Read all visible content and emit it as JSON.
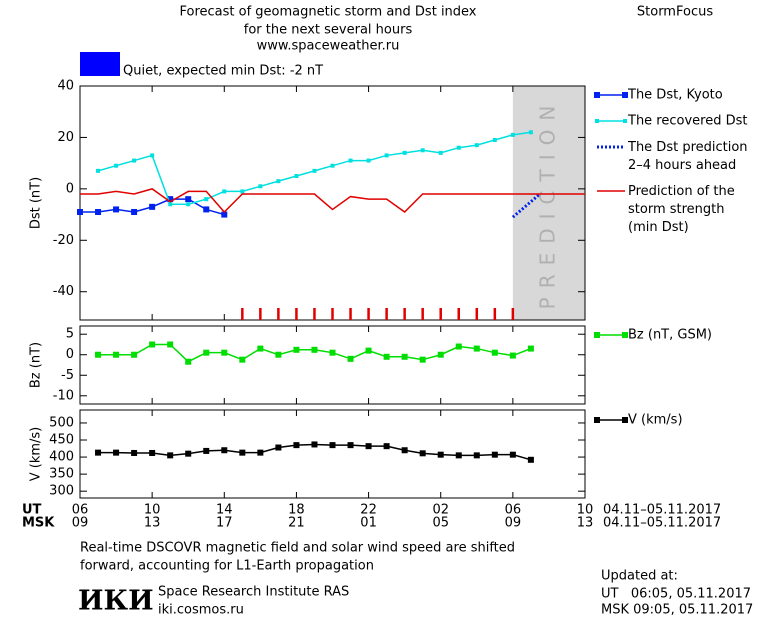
{
  "header": {
    "title_lines": [
      "Forecast of geomagnetic storm and Dst index",
      "for the next several hours",
      "www.spaceweather.ru"
    ],
    "brand": "StormFocus"
  },
  "chart_data": [
    {
      "type": "line",
      "y_label": "Dst (nT)",
      "xlim": [
        0,
        28
      ],
      "ylim": [
        -51,
        40
      ],
      "yticks": [
        -40,
        -20,
        0,
        20,
        40
      ],
      "status": {
        "label": "Quiet, expected min Dst: -2 nT",
        "color": "#0000ff"
      },
      "prediction": {
        "label": "PREDICTION",
        "from": 24,
        "to": 28,
        "color": "#d8d8d8"
      },
      "forecast_marks": {
        "color": "#e00000",
        "x": [
          9,
          10,
          11,
          12,
          13,
          14,
          15,
          16,
          17,
          18,
          19,
          20,
          21,
          22,
          23,
          24
        ]
      },
      "series": [
        {
          "name": "The Dst, Kyoto",
          "color": "#0022ee",
          "marker": "square",
          "x": [
            0,
            1,
            2,
            3,
            4,
            5,
            6,
            7,
            8
          ],
          "values": [
            -9,
            -9,
            -8,
            -9,
            -7,
            -4,
            -4,
            -8,
            -10
          ]
        },
        {
          "name": "The recovered Dst",
          "color": "#00e0e0",
          "marker": "small",
          "x": [
            1,
            2,
            3,
            4,
            5,
            6,
            7,
            8,
            9,
            10,
            11,
            12,
            13,
            14,
            15,
            16,
            17,
            18,
            19,
            20,
            21,
            22,
            23,
            24,
            25
          ],
          "values": [
            7,
            9,
            11,
            13,
            -6,
            -6,
            -4,
            -1,
            -1,
            1,
            3,
            5,
            7,
            9,
            11,
            11,
            13,
            14,
            15,
            14,
            16,
            17,
            19,
            21,
            22
          ]
        },
        {
          "name": "The Dst prediction\n2–4 hours ahead",
          "color": "#0022ee",
          "dash": true,
          "x": [
            24,
            24.5,
            25,
            25.5
          ],
          "values": [
            -11,
            -8,
            -5,
            -2
          ]
        },
        {
          "name": "Prediction of the\nstorm strength\n(min Dst)",
          "color": "#e00000",
          "x": [
            0,
            1,
            2,
            3,
            4,
            5,
            6,
            7,
            8,
            9,
            10,
            11,
            12,
            13,
            14,
            15,
            16,
            17,
            18,
            19,
            20,
            21,
            22,
            23,
            24,
            25,
            26,
            27,
            28
          ],
          "values": [
            -2,
            -2,
            -1,
            -2,
            0,
            -5,
            -1,
            -1,
            -9,
            -2,
            -2,
            -2,
            -2,
            -2,
            -8,
            -3,
            -4,
            -4,
            -9,
            -2,
            -2,
            -2,
            -2,
            -2,
            -2,
            -2,
            -2,
            -2,
            -2
          ]
        }
      ]
    },
    {
      "type": "line",
      "y_label": "Bz (nT)",
      "xlim": [
        0,
        28
      ],
      "ylim": [
        -12,
        7
      ],
      "yticks": [
        -10,
        -5,
        0,
        5
      ],
      "series": [
        {
          "name": "Bz (nT, GSM)",
          "color": "#00dd00",
          "marker": "square",
          "x": [
            1,
            2,
            3,
            4,
            5,
            6,
            7,
            8,
            9,
            10,
            11,
            12,
            13,
            14,
            15,
            16,
            17,
            18,
            19,
            20,
            21,
            22,
            23,
            24,
            25
          ],
          "values": [
            0,
            0,
            0,
            2.5,
            2.5,
            -1.7,
            0.5,
            0.5,
            -1.2,
            1.5,
            0,
            1.2,
            1.2,
            0.5,
            -1,
            1,
            -0.5,
            -0.5,
            -1.2,
            0,
            2,
            1.5,
            0.5,
            -0.2,
            1.5
          ]
        }
      ]
    },
    {
      "type": "line",
      "y_label": "V (km/s)",
      "xlim": [
        0,
        28
      ],
      "ylim": [
        280,
        538
      ],
      "yticks": [
        300,
        350,
        400,
        450,
        500
      ],
      "x_row_labels": [
        "UT",
        "MSK"
      ],
      "date_range": "04.11–05.11.2017",
      "xticks": [
        {
          "value": 0,
          "label": "06"
        },
        {
          "value": 4,
          "label": "10"
        },
        {
          "value": 8,
          "label": "14"
        },
        {
          "value": 12,
          "label": "18"
        },
        {
          "value": 16,
          "label": "22"
        },
        {
          "value": 20,
          "label": "02"
        },
        {
          "value": 24,
          "label": "06"
        },
        {
          "value": 28,
          "label": "10"
        }
      ],
      "xticks_msk": [
        {
          "value": 0,
          "label": "09"
        },
        {
          "value": 4,
          "label": "13"
        },
        {
          "value": 8,
          "label": "17"
        },
        {
          "value": 12,
          "label": "21"
        },
        {
          "value": 16,
          "label": "01"
        },
        {
          "value": 20,
          "label": "05"
        },
        {
          "value": 24,
          "label": "09"
        },
        {
          "value": 28,
          "label": "13"
        }
      ],
      "series": [
        {
          "name": "V (km/s)",
          "color": "#000000",
          "marker": "square",
          "x": [
            1,
            2,
            3,
            4,
            5,
            6,
            7,
            8,
            9,
            10,
            11,
            12,
            13,
            14,
            15,
            16,
            17,
            18,
            19,
            20,
            21,
            22,
            23,
            24,
            25
          ],
          "values": [
            413,
            413,
            412,
            412,
            405,
            410,
            418,
            420,
            413,
            413,
            428,
            435,
            437,
            435,
            435,
            432,
            432,
            420,
            411,
            407,
            405,
            405,
            407,
            407,
            392
          ]
        }
      ]
    }
  ],
  "footer": {
    "note_lines": [
      "Real-time DSCOVR magnetic field and solar wind speed are shifted",
      "forward, accounting for L1-Earth propagation"
    ],
    "logo": "ИКИ",
    "institute": "Space Research Institute RAS",
    "site": "iki.cosmos.ru",
    "updated_lines": [
      "Updated at:",
      "UT   06:05, 05.11.2017",
      "MSK 09:05, 05.11.2017"
    ]
  }
}
